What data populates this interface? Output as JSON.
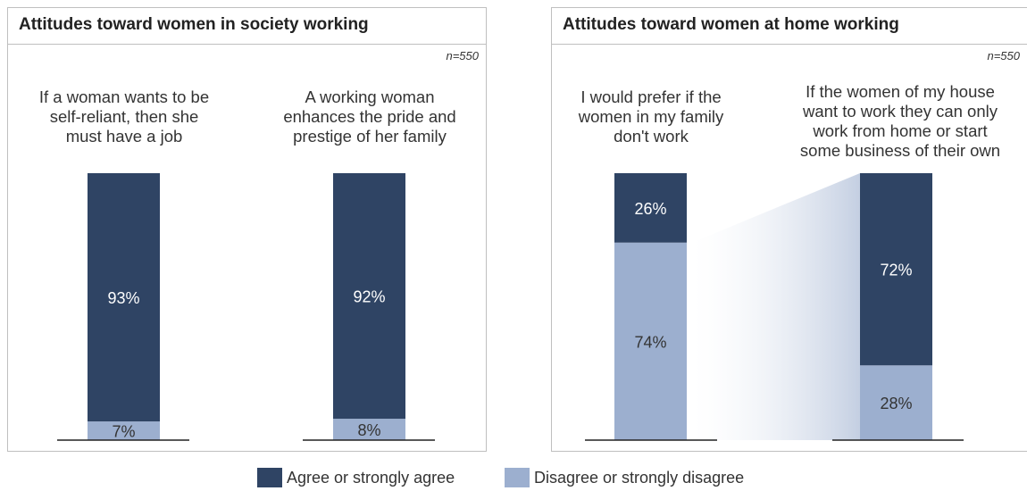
{
  "colors": {
    "agree": "#2f4464",
    "disagree": "#9cafcf",
    "baseline": "#222222",
    "connector": "#c4cfe2"
  },
  "legend": {
    "agree_label": "Agree or strongly agree",
    "disagree_label": "Disagree or strongly disagree"
  },
  "panels": [
    {
      "title": "Attitudes toward women in society working",
      "n_label": "n=550"
    },
    {
      "title": "Attitudes toward women at home working",
      "n_label": "n=550"
    }
  ],
  "chart_data": [
    {
      "type": "bar",
      "stacked": true,
      "title": "Attitudes toward women in society working",
      "sample": "n=550",
      "categories": [
        "If a woman wants to be self-reliant, then she must have a job",
        "A working woman enhances the pride and prestige of her family"
      ],
      "series": [
        {
          "name": "Agree or strongly agree",
          "values": [
            93,
            92
          ],
          "labels": [
            "93%",
            "92%"
          ]
        },
        {
          "name": "Disagree or strongly disagree",
          "values": [
            7,
            8
          ],
          "labels": [
            "7%",
            "8%"
          ]
        }
      ],
      "ylim": [
        0,
        100
      ]
    },
    {
      "type": "bar",
      "stacked": true,
      "title": "Attitudes toward women at home working",
      "sample": "n=550",
      "categories": [
        "I would prefer if the women in my family don't work",
        "If the women of my house want to work they can only work from home or start some business of their own"
      ],
      "series": [
        {
          "name": "Agree or strongly agree",
          "values": [
            26,
            72
          ],
          "labels": [
            "26%",
            "72%"
          ]
        },
        {
          "name": "Disagree or strongly disagree",
          "values": [
            74,
            28
          ],
          "labels": [
            "74%",
            "28%"
          ]
        }
      ],
      "ylim": [
        0,
        100
      ]
    }
  ],
  "question_labels": [
    [
      "If a woman wants to be",
      "self-reliant, then she",
      "must have a job"
    ],
    [
      "A working woman",
      "enhances the pride and",
      "prestige of her family"
    ],
    [
      "I would prefer if the",
      "women in my family",
      "don't work"
    ],
    [
      "If the women of my house",
      "want to work they can only",
      "work from home or start",
      "some business of their own"
    ]
  ]
}
